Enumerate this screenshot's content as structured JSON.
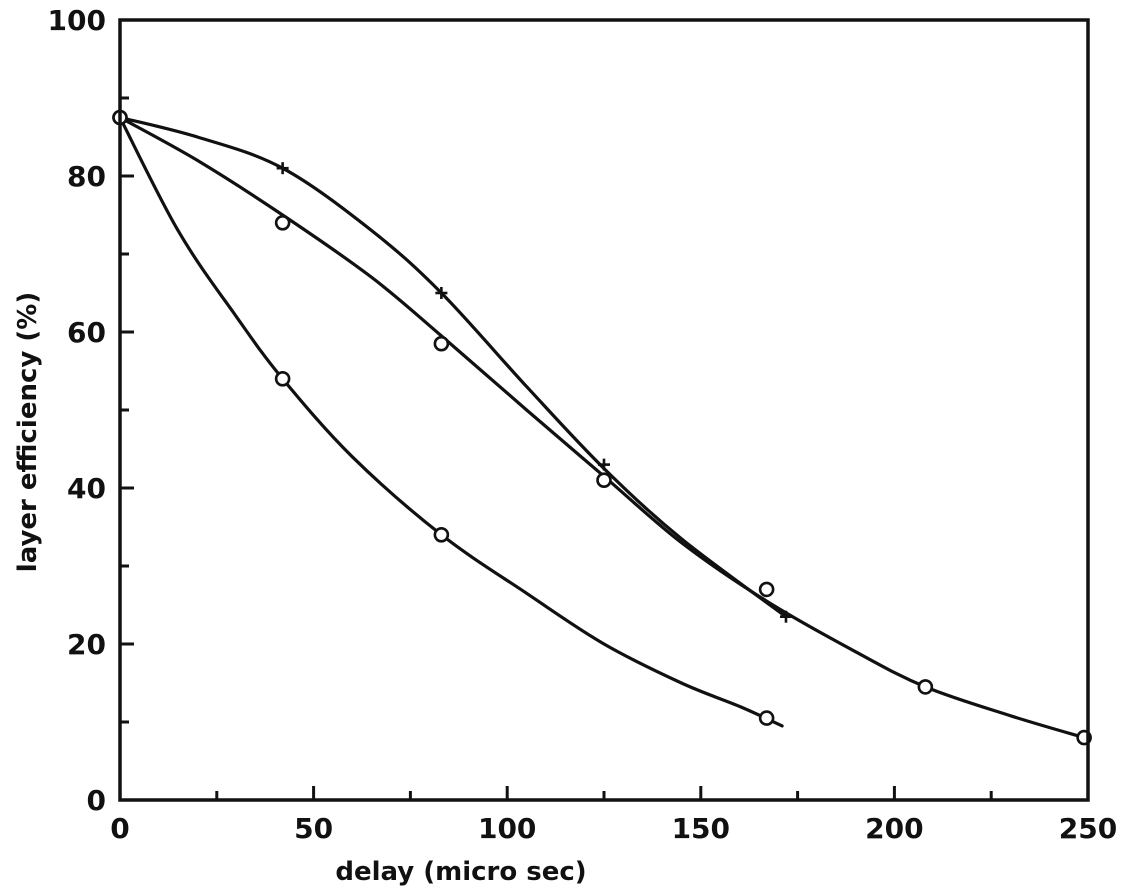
{
  "chart_data": {
    "type": "line",
    "title": "",
    "xlabel": "delay (micro sec)",
    "ylabel": "layer efficiency (%)",
    "xlim": [
      0,
      250
    ],
    "ylim": [
      0,
      100
    ],
    "xticks": [
      "0",
      "50",
      "100",
      "150",
      "200",
      "250"
    ],
    "yticks": [
      "0",
      "20",
      "40",
      "60",
      "80",
      "100"
    ],
    "grid": false,
    "legend": "none",
    "series": [
      {
        "marker": "plus",
        "points": [
          [
            0,
            87.5
          ],
          [
            42,
            81
          ],
          [
            83,
            65
          ],
          [
            125,
            43
          ],
          [
            172,
            23.5
          ]
        ],
        "curve": [
          [
            0,
            87.5
          ],
          [
            20,
            85
          ],
          [
            42,
            81
          ],
          [
            65,
            73
          ],
          [
            83,
            65
          ],
          [
            105,
            53
          ],
          [
            125,
            42.5
          ],
          [
            145,
            33.5
          ],
          [
            172,
            23.5
          ]
        ]
      },
      {
        "marker": "circle",
        "points": [
          [
            0,
            87.5
          ],
          [
            42,
            74
          ],
          [
            83,
            58.5
          ],
          [
            125,
            41
          ],
          [
            167,
            27
          ],
          [
            208,
            14.5
          ],
          [
            249,
            8
          ]
        ],
        "curve": [
          [
            0,
            87.5
          ],
          [
            20,
            82
          ],
          [
            42,
            75
          ],
          [
            65,
            67
          ],
          [
            83,
            59.5
          ],
          [
            105,
            50
          ],
          [
            125,
            41.5
          ],
          [
            145,
            33
          ],
          [
            167,
            25.5
          ],
          [
            190,
            19
          ],
          [
            208,
            14.5
          ],
          [
            230,
            10.8
          ],
          [
            249,
            8
          ]
        ]
      },
      {
        "marker": "circle",
        "points": [
          [
            0,
            87.5
          ],
          [
            42,
            54
          ],
          [
            83,
            34
          ],
          [
            167,
            10.5
          ]
        ],
        "curve": [
          [
            0,
            87.5
          ],
          [
            15,
            73
          ],
          [
            30,
            62
          ],
          [
            42,
            54
          ],
          [
            60,
            44
          ],
          [
            83,
            34
          ],
          [
            105,
            26.5
          ],
          [
            125,
            20
          ],
          [
            145,
            15
          ],
          [
            160,
            12
          ],
          [
            171,
            9.5
          ]
        ]
      }
    ]
  }
}
